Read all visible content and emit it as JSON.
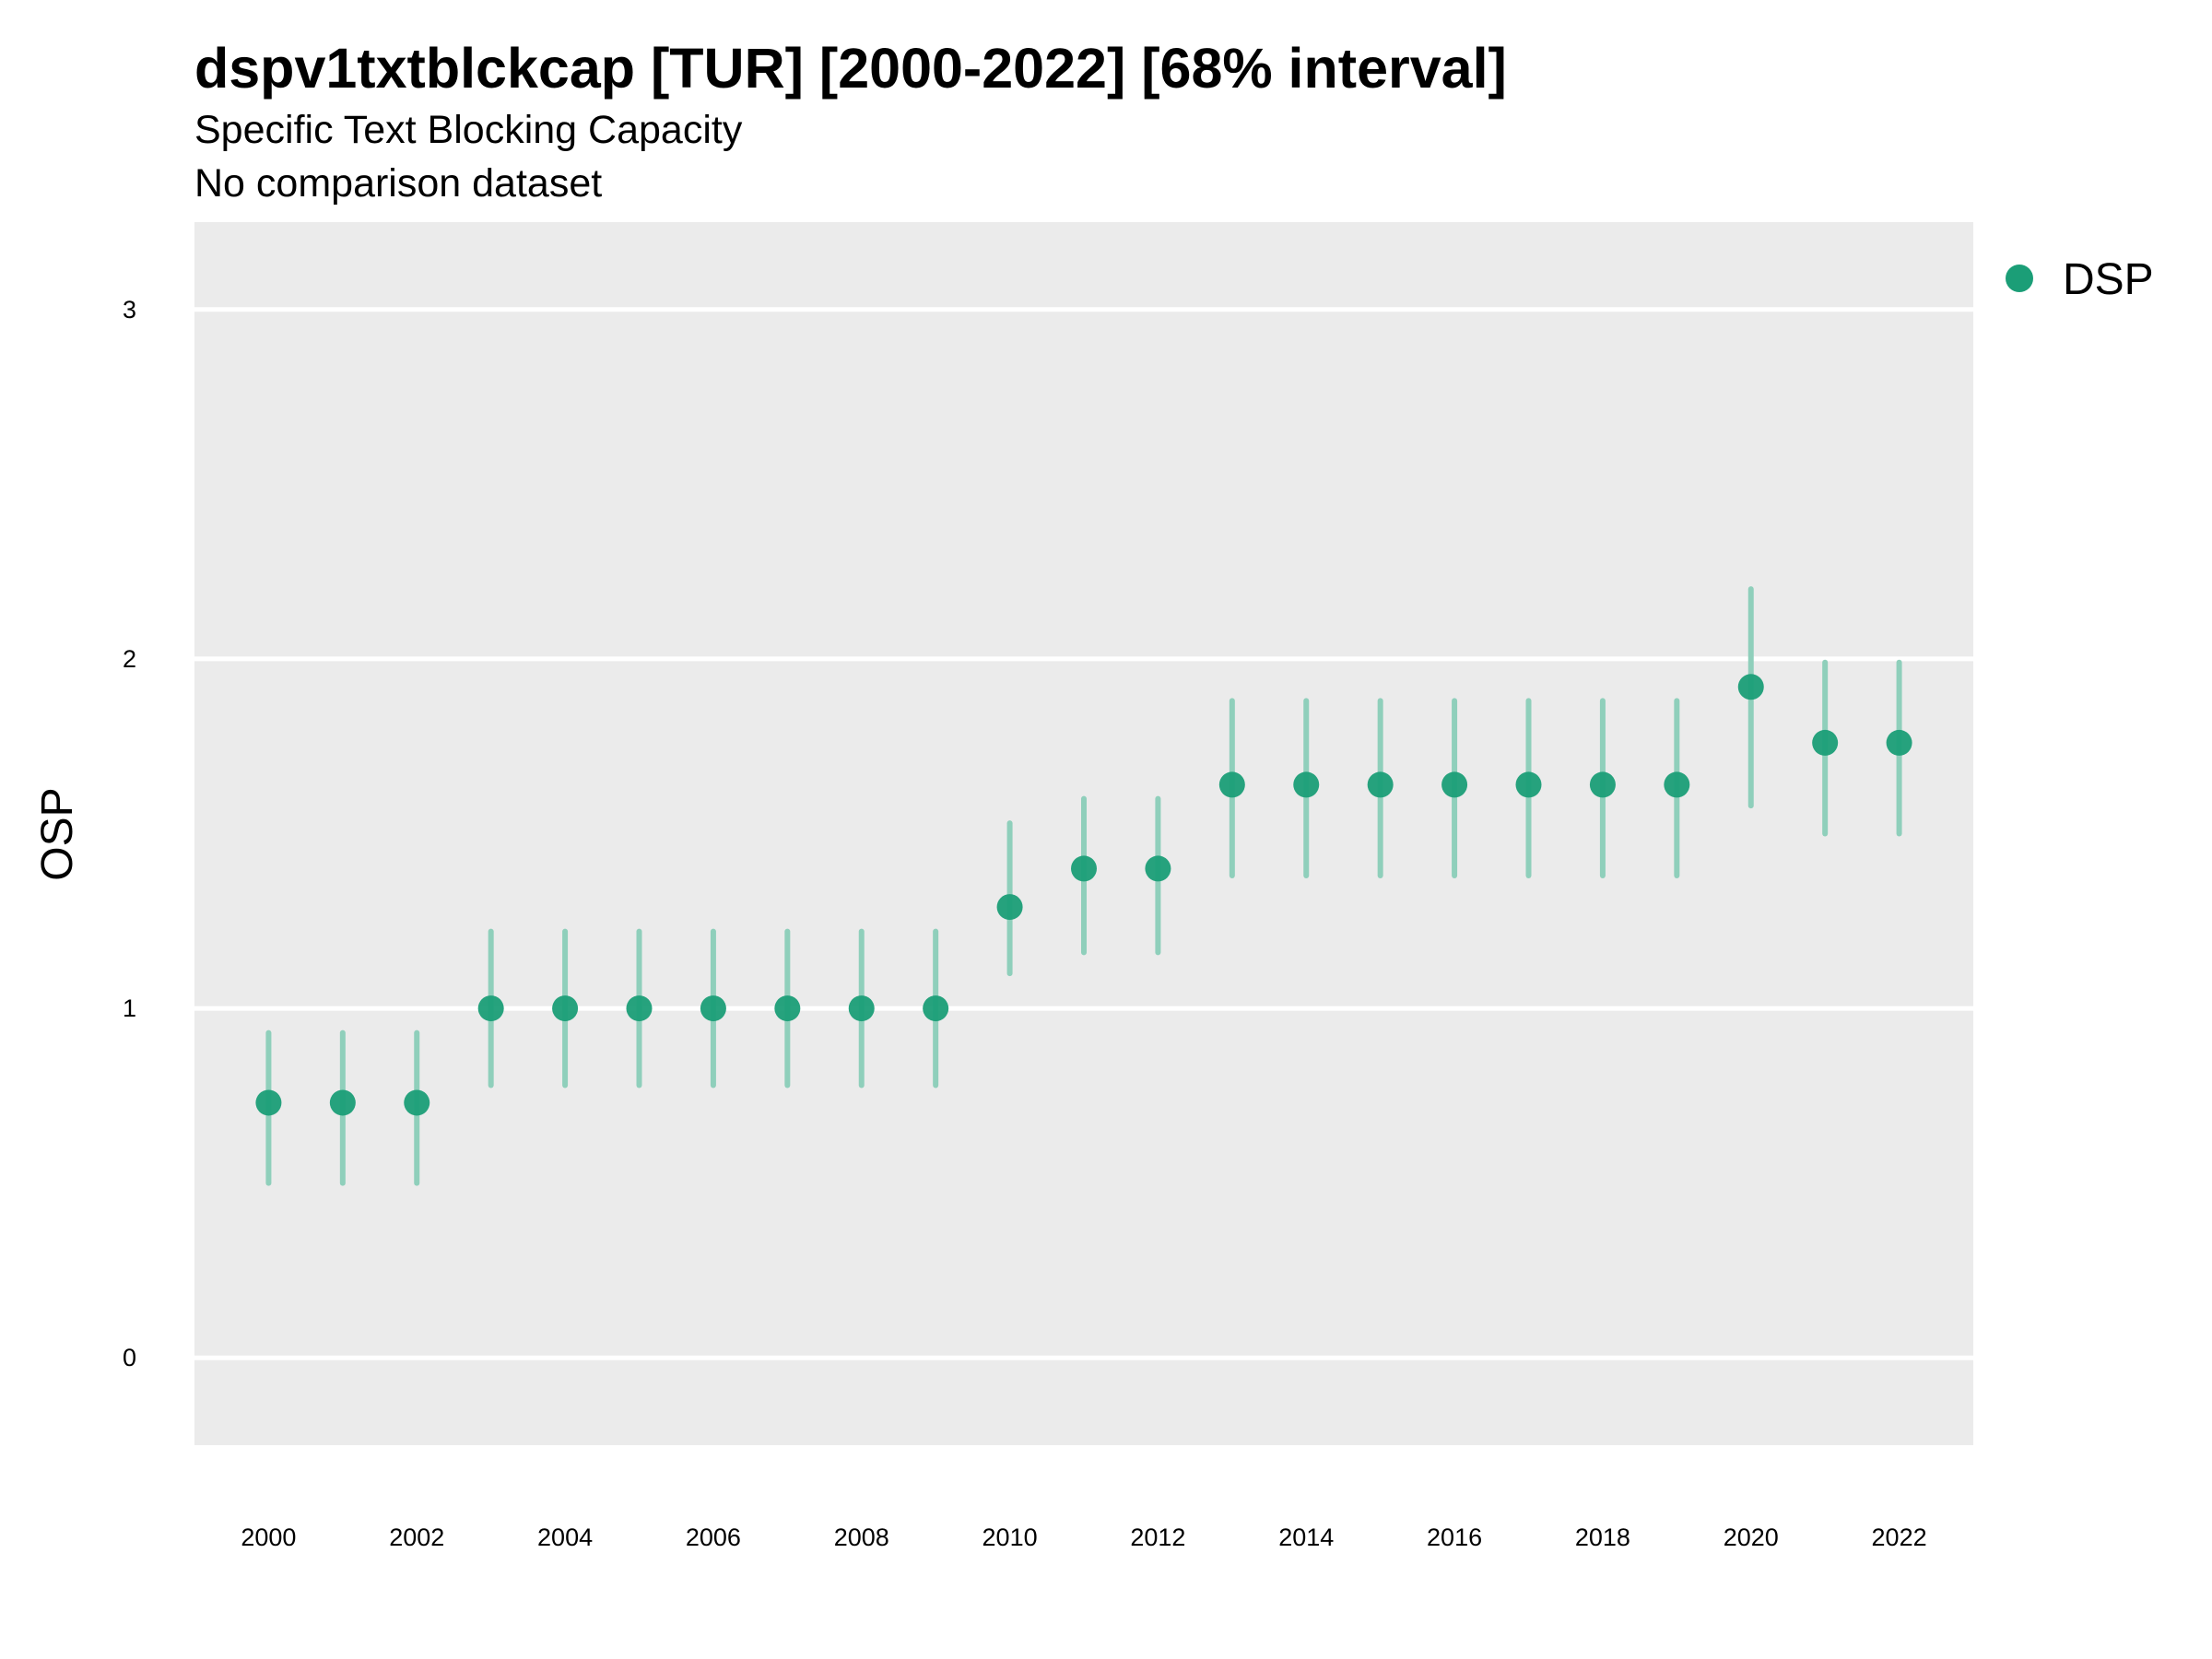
{
  "chart_data": {
    "type": "scatter",
    "title": "dspv1txtblckcap [TUR] [2000-2022] [68% interval]",
    "subtitle": "Specific Text Blocking Capacity",
    "caption": "No comparison dataset",
    "xlabel": "",
    "ylabel": "OSP",
    "xlim": [
      1999,
      2023
    ],
    "ylim": [
      -0.25,
      3.25
    ],
    "x_ticks": [
      2000,
      2002,
      2004,
      2006,
      2008,
      2010,
      2012,
      2014,
      2016,
      2018,
      2020,
      2022
    ],
    "y_ticks": [
      0,
      1,
      2,
      3
    ],
    "grid": true,
    "legend_position": "right",
    "colors": {
      "panel_background": "#ebebeb",
      "grid": "#ffffff",
      "point": "#1b9e77",
      "interval": "#8fcfbb"
    },
    "series": [
      {
        "name": "DSP",
        "x": [
          2000,
          2001,
          2002,
          2003,
          2004,
          2005,
          2006,
          2007,
          2008,
          2009,
          2010,
          2011,
          2012,
          2013,
          2014,
          2015,
          2016,
          2017,
          2018,
          2019,
          2020,
          2021,
          2022
        ],
        "y": [
          0.73,
          0.73,
          0.73,
          1.0,
          1.0,
          1.0,
          1.0,
          1.0,
          1.0,
          1.0,
          1.29,
          1.4,
          1.4,
          1.64,
          1.64,
          1.64,
          1.64,
          1.64,
          1.64,
          1.64,
          1.92,
          1.76,
          1.76
        ],
        "lower": [
          0.5,
          0.5,
          0.5,
          0.78,
          0.78,
          0.78,
          0.78,
          0.78,
          0.78,
          0.78,
          1.1,
          1.16,
          1.16,
          1.38,
          1.38,
          1.38,
          1.38,
          1.38,
          1.38,
          1.38,
          1.58,
          1.5,
          1.5
        ],
        "upper": [
          0.93,
          0.93,
          0.93,
          1.22,
          1.22,
          1.22,
          1.22,
          1.22,
          1.22,
          1.22,
          1.53,
          1.6,
          1.6,
          1.88,
          1.88,
          1.88,
          1.88,
          1.88,
          1.88,
          1.88,
          2.2,
          1.99,
          1.99
        ]
      }
    ]
  }
}
